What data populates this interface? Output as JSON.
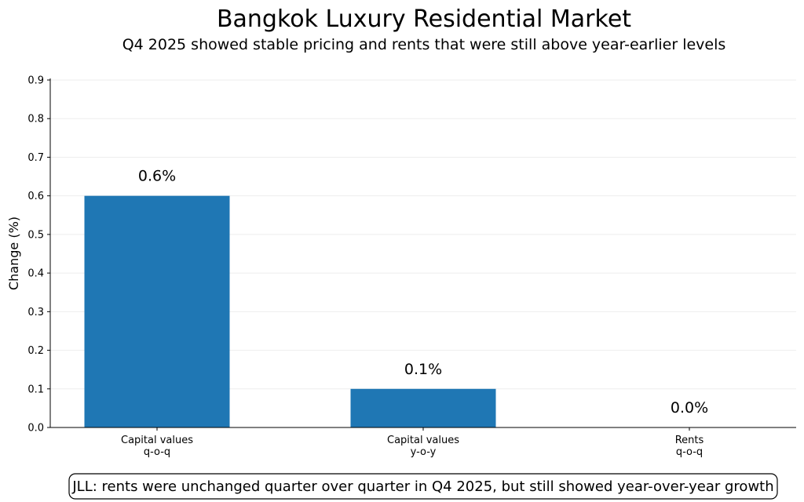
{
  "chart_data": {
    "type": "bar",
    "title": "Bangkok Luxury Residential Market",
    "subtitle": "Q4 2025 showed stable pricing and rents that were still above year-earlier levels",
    "xlabel": "",
    "ylabel": "Change (%)",
    "categories": [
      [
        "Capital values",
        "q-o-q"
      ],
      [
        "Capital values",
        "y-o-y"
      ],
      [
        "Rents",
        "q-o-q"
      ]
    ],
    "values": [
      0.6,
      0.1,
      0.0
    ],
    "data_labels": [
      "0.6%",
      "0.1%",
      "0.0%"
    ],
    "ylim": [
      0,
      0.9
    ],
    "yticks": [
      "0.0",
      "0.1",
      "0.2",
      "0.3",
      "0.4",
      "0.5",
      "0.6",
      "0.7",
      "0.8",
      "0.9"
    ],
    "grid": true,
    "bar_color": "#1f77b4",
    "annotation": "JLL: rents were unchanged quarter over quarter in Q4 2025, but still showed year-over-year growth"
  }
}
